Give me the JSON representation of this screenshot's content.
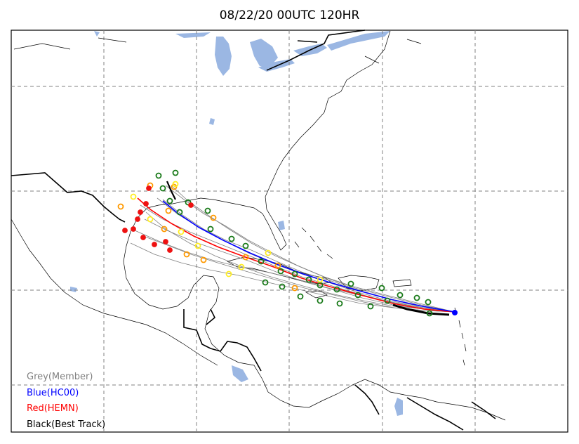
{
  "title": "08/22/20 00UTC 120HR",
  "legend": [
    {
      "label": "Grey(Member)",
      "color": "#808080"
    },
    {
      "label": "Blue(HC00)",
      "color": "#0000ff"
    },
    {
      "label": "Red(HEMN)",
      "color": "#ff0000"
    },
    {
      "label": "Black(Best Track)",
      "color": "#000000"
    }
  ],
  "colors": {
    "water": "#9bb7e3",
    "member": "#808080",
    "hc00": "#0000ff",
    "hemn": "#ff0000",
    "best_track": "#000000",
    "marker_green": "#1a7a1a",
    "marker_orange": "#ff9900",
    "marker_yellow": "#ffee22",
    "marker_red": "#ee1111",
    "gridline": "#808080"
  }
}
